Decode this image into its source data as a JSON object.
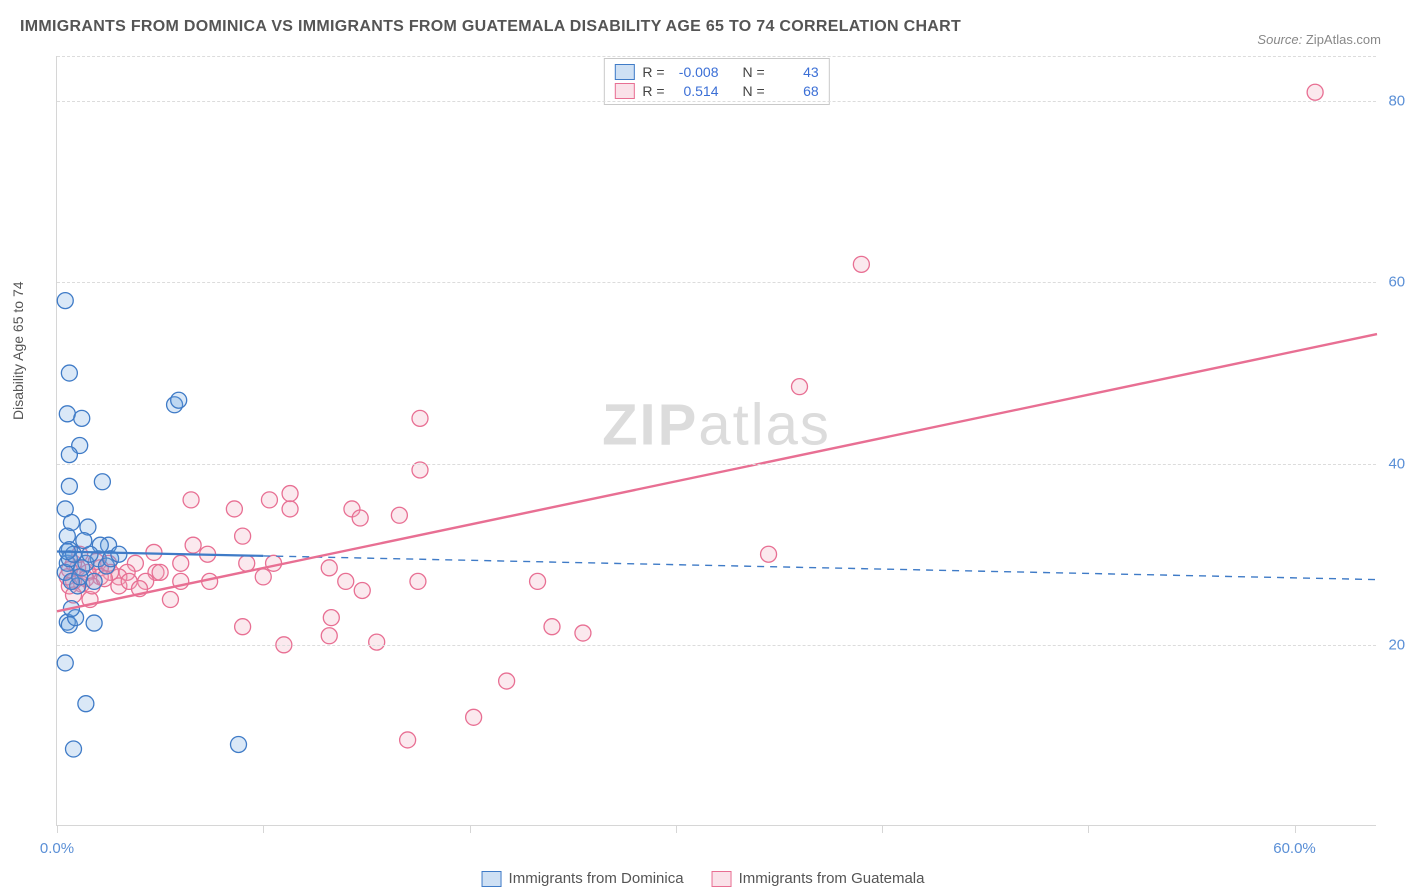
{
  "title": "IMMIGRANTS FROM DOMINICA VS IMMIGRANTS FROM GUATEMALA DISABILITY AGE 65 TO 74 CORRELATION CHART",
  "source": {
    "label": "Source:",
    "value": "ZipAtlas.com"
  },
  "ylabel": "Disability Age 65 to 74",
  "watermark": {
    "a": "ZIP",
    "b": "atlas"
  },
  "chart": {
    "type": "scatter-correlation",
    "background_color": "#ffffff",
    "grid_color": "#dcdcdc",
    "axis_color": "#d6d6d6",
    "tick_label_color": "#5a8fd6",
    "tick_fontsize": 15,
    "title_color": "#555555",
    "title_fontsize": 16,
    "xlim": [
      0,
      64
    ],
    "ylim": [
      0,
      85
    ],
    "xticks": [
      0,
      10,
      20,
      30,
      40,
      50,
      60
    ],
    "xtick_labels_shown": {
      "0": "0.0%",
      "60": "60.0%"
    },
    "yticks": [
      20,
      40,
      60,
      80
    ],
    "ytick_labels": [
      "20.0%",
      "40.0%",
      "60.0%",
      "80.0%"
    ],
    "marker_radius": 8,
    "marker_fill_opacity": 0.25,
    "series": {
      "dominica": {
        "label": "Immigrants from Dominica",
        "color": "#6da2df",
        "stroke": "#3f7bc7",
        "R": "-0.008",
        "N": "43",
        "trend": {
          "solid_to_x": 10,
          "y_start": 30.3,
          "y_end": 27.2,
          "line_width": 2.2
        },
        "points": [
          [
            0.4,
            58
          ],
          [
            0.6,
            50
          ],
          [
            0.5,
            45.5
          ],
          [
            1.2,
            45
          ],
          [
            1.1,
            42
          ],
          [
            0.6,
            41
          ],
          [
            0.6,
            37.5
          ],
          [
            2.2,
            38
          ],
          [
            0.4,
            35
          ],
          [
            0.7,
            33.5
          ],
          [
            1.5,
            33
          ],
          [
            0.5,
            32
          ],
          [
            0.6,
            30.5
          ],
          [
            0.5,
            29
          ],
          [
            0.4,
            28
          ],
          [
            0.5,
            22.5
          ],
          [
            0.6,
            22.2
          ],
          [
            1.8,
            22.4
          ],
          [
            0.4,
            18
          ],
          [
            1.4,
            13.5
          ],
          [
            0.8,
            8.5
          ],
          [
            5.7,
            46.5
          ],
          [
            5.9,
            47
          ],
          [
            8.8,
            9
          ],
          [
            2.5,
            31
          ],
          [
            2.0,
            29.5
          ],
          [
            1.0,
            26.5
          ],
          [
            1.2,
            28.5
          ],
          [
            1.8,
            27
          ],
          [
            1.4,
            29
          ],
          [
            2.1,
            31
          ],
          [
            2.4,
            28.7
          ],
          [
            0.7,
            27
          ],
          [
            0.6,
            29.5
          ],
          [
            1.6,
            30
          ],
          [
            2.6,
            29.5
          ],
          [
            3.0,
            30
          ],
          [
            0.9,
            23
          ],
          [
            1.3,
            31.5
          ],
          [
            0.8,
            30
          ],
          [
            1.1,
            27.5
          ],
          [
            0.5,
            30.3
          ],
          [
            0.7,
            24
          ]
        ]
      },
      "guatemala": {
        "label": "Immigrants from Guatemala",
        "color": "#f1a7bd",
        "stroke": "#e86f93",
        "R": "0.514",
        "N": "68",
        "trend": {
          "y_start": 23.7,
          "y_end": 54.3,
          "line_width": 2.4
        },
        "points": [
          [
            61,
            81
          ],
          [
            39,
            62
          ],
          [
            36,
            48.5
          ],
          [
            34.5,
            30
          ],
          [
            24,
            22
          ],
          [
            23.3,
            27
          ],
          [
            25.5,
            21.3
          ],
          [
            21.8,
            16
          ],
          [
            20.2,
            12
          ],
          [
            17.6,
            45
          ],
          [
            16.6,
            34.3
          ],
          [
            17.6,
            39.3
          ],
          [
            17.5,
            27
          ],
          [
            17,
            9.5
          ],
          [
            14.3,
            35
          ],
          [
            14.7,
            34
          ],
          [
            11.3,
            36.7
          ],
          [
            11.3,
            35
          ],
          [
            11,
            20
          ],
          [
            13.2,
            21
          ],
          [
            13.2,
            28.5
          ],
          [
            14,
            27
          ],
          [
            14.8,
            26
          ],
          [
            13.3,
            23
          ],
          [
            15.5,
            20.3
          ],
          [
            10.5,
            29
          ],
          [
            10.3,
            36
          ],
          [
            8.6,
            35
          ],
          [
            9,
            32
          ],
          [
            9.2,
            29
          ],
          [
            9,
            22
          ],
          [
            7.3,
            30
          ],
          [
            7.4,
            27
          ],
          [
            6.5,
            36
          ],
          [
            6.6,
            31
          ],
          [
            6,
            29
          ],
          [
            6,
            27
          ],
          [
            4.7,
            30.2
          ],
          [
            4.8,
            28
          ],
          [
            4.3,
            27
          ],
          [
            3.8,
            29
          ],
          [
            3.4,
            28
          ],
          [
            3,
            27.5
          ],
          [
            2.5,
            29
          ],
          [
            2.6,
            28
          ],
          [
            2.1,
            28.5
          ],
          [
            2.1,
            27.5
          ],
          [
            1.5,
            28
          ],
          [
            1.6,
            25
          ],
          [
            1.2,
            26.7
          ],
          [
            1.0,
            28.5
          ],
          [
            0.8,
            27
          ],
          [
            0.8,
            29
          ],
          [
            1.1,
            30
          ],
          [
            1.4,
            27.3
          ],
          [
            1.7,
            26.5
          ],
          [
            1.9,
            29.2
          ],
          [
            0.6,
            28.3
          ],
          [
            0.6,
            26.5
          ],
          [
            0.8,
            25.5
          ],
          [
            0.5,
            27.5
          ],
          [
            2.3,
            27.3
          ],
          [
            3.0,
            26.5
          ],
          [
            3.5,
            27
          ],
          [
            4.0,
            26.2
          ],
          [
            5.0,
            28
          ],
          [
            5.5,
            25
          ],
          [
            10,
            27.5
          ]
        ]
      }
    }
  },
  "legend_top": {
    "rows": [
      {
        "swatch_series": "dominica",
        "r_label": "R =",
        "r_value": "-0.008",
        "n_label": "N =",
        "n_value": "43"
      },
      {
        "swatch_series": "guatemala",
        "r_label": "R =",
        "r_value": "0.514",
        "n_label": "N =",
        "n_value": "68"
      }
    ]
  },
  "legend_bottom": {
    "items": [
      {
        "series": "dominica",
        "label": "Immigrants from Dominica"
      },
      {
        "series": "guatemala",
        "label": "Immigrants from Guatemala"
      }
    ]
  }
}
